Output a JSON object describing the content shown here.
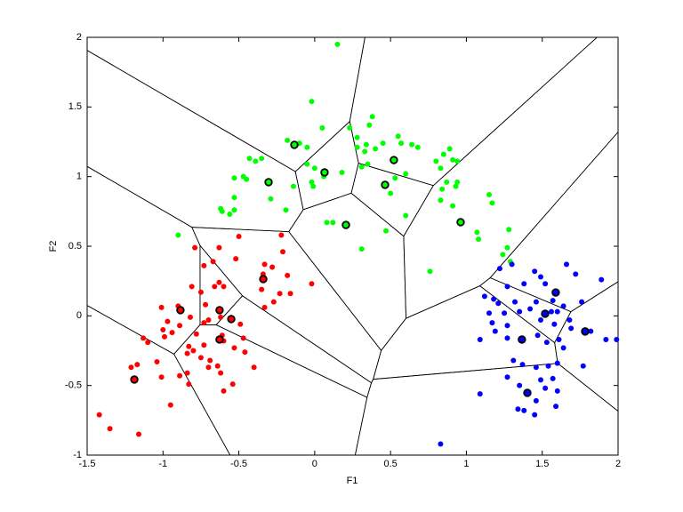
{
  "chart_data": {
    "type": "scatter",
    "xlabel": "F1",
    "ylabel": "F2",
    "xlim": [
      -1.5,
      2
    ],
    "ylim": [
      -1,
      2
    ],
    "xticks": [
      -1.5,
      -1,
      -0.5,
      0,
      0.5,
      1,
      1.5,
      2
    ],
    "yticks": [
      -1,
      -0.5,
      0,
      0.5,
      1,
      1.5,
      2
    ],
    "series": [
      {
        "color": "#00ff00",
        "x": [
          0.15,
          -0.02,
          0.38,
          0.36,
          0.05,
          0.23,
          -0.18,
          0.28,
          0.55,
          0.34,
          -0.1,
          -0.05,
          0.28,
          0.45,
          0.57,
          0.64,
          0.33,
          0.4,
          0.68,
          0.89,
          0.85,
          -0.43,
          -0.39,
          -0.35,
          -0.05,
          0.0,
          0.31,
          0.35,
          0.8,
          0.91,
          0.94,
          0.83,
          -0.47,
          -0.53,
          0.06,
          0.18,
          0.6,
          0.53,
          -0.02,
          0.87,
          0.94,
          -0.45,
          -0.01,
          0.84,
          0.93,
          1.15,
          -0.53,
          -0.14,
          -0.29,
          0.5,
          0.83,
          1.17,
          -0.53,
          -0.62,
          -0.61,
          -0.19,
          -0.56,
          0.08,
          0.12,
          0.91,
          0.6,
          0.47,
          1.07,
          1.28,
          1.08,
          1.27,
          -0.9,
          1.24,
          0.31,
          1.29,
          0.76
        ],
        "y": [
          1.95,
          1.54,
          1.43,
          1.37,
          1.35,
          1.35,
          1.26,
          1.28,
          1.29,
          1.23,
          1.24,
          1.21,
          1.21,
          1.24,
          1.24,
          1.23,
          1.18,
          1.2,
          1.21,
          1.2,
          1.16,
          1.13,
          1.11,
          1.13,
          1.09,
          1.06,
          1.07,
          1.09,
          1.11,
          1.12,
          1.11,
          1.06,
          1.0,
          0.99,
          1.0,
          1.03,
          1.02,
          0.99,
          0.96,
          0.96,
          0.96,
          0.98,
          0.93,
          0.91,
          0.93,
          0.87,
          0.85,
          0.93,
          0.84,
          0.88,
          0.83,
          0.81,
          0.76,
          0.77,
          0.75,
          0.76,
          0.73,
          0.67,
          0.67,
          0.79,
          0.72,
          0.61,
          0.6,
          0.62,
          0.55,
          0.49,
          0.58,
          0.44,
          0.48,
          0.39,
          0.32
        ],
        "centers": {
          "x": [
            -0.134,
            0.065,
            0.522,
            -0.304,
            0.464,
            0.206,
            0.962
          ],
          "y": [
            1.228,
            1.03,
            1.119,
            0.96,
            0.941,
            0.653,
            0.673
          ]
        }
      },
      {
        "color": "#ff0000",
        "x": [
          -0.79,
          -0.63,
          -0.5,
          -0.22,
          -0.67,
          -0.52,
          -0.73,
          -0.21,
          -0.33,
          -0.28,
          -0.34,
          -0.18,
          -0.63,
          -0.6,
          -0.66,
          -0.75,
          -0.81,
          -0.35,
          -0.23,
          -0.02,
          -0.16,
          -0.27,
          -0.33,
          -0.9,
          -1.01,
          -0.72,
          -0.62,
          -0.7,
          -0.73,
          -0.82,
          -0.97,
          -1.0,
          -0.89,
          -0.94,
          -0.49,
          -0.61,
          -0.78,
          -0.83,
          -0.73,
          -0.47,
          -0.6,
          -0.53,
          -1.13,
          -1.1,
          -0.99,
          -0.8,
          -0.84,
          -0.46,
          -0.75,
          -0.69,
          -1.04,
          -0.64,
          -0.7,
          -1.17,
          -0.4,
          -1.21,
          -0.84,
          -0.89,
          -0.62,
          -1.01,
          -0.83,
          -0.54,
          -0.6,
          -0.95,
          -1.42,
          -1.35,
          -1.16
        ],
        "y": [
          0.49,
          0.49,
          0.57,
          0.58,
          0.39,
          0.41,
          0.36,
          0.46,
          0.37,
          0.35,
          0.3,
          0.29,
          0.24,
          0.21,
          0.21,
          0.17,
          0.21,
          0.19,
          0.16,
          0.23,
          0.16,
          0.1,
          0.06,
          0.07,
          0.06,
          0.08,
          -0.01,
          -0.03,
          -0.05,
          -0.01,
          -0.04,
          -0.1,
          -0.07,
          -0.12,
          -0.06,
          -0.14,
          -0.13,
          -0.22,
          -0.21,
          -0.16,
          -0.18,
          -0.23,
          -0.16,
          -0.19,
          -0.15,
          -0.25,
          -0.27,
          -0.26,
          -0.3,
          -0.32,
          -0.33,
          -0.36,
          -0.37,
          -0.35,
          -0.37,
          -0.37,
          -0.41,
          -0.43,
          -0.41,
          -0.44,
          -0.49,
          -0.49,
          -0.54,
          -0.64,
          -0.71,
          -0.81,
          -0.85
        ],
        "centers": {
          "x": [
            -0.339,
            -0.885,
            -0.627,
            -0.55,
            -0.627,
            -1.189
          ],
          "y": [
            0.264,
            0.041,
            0.041,
            -0.023,
            -0.17,
            -0.457
          ]
        }
      },
      {
        "color": "#0000ff",
        "x": [
          1.22,
          1.3,
          1.45,
          1.66,
          1.72,
          1.89,
          1.49,
          1.27,
          1.38,
          1.52,
          1.12,
          1.18,
          1.15,
          1.21,
          1.32,
          1.35,
          1.57,
          1.64,
          1.76,
          1.42,
          1.46,
          1.6,
          1.68,
          1.56,
          1.25,
          1.17,
          1.27,
          1.19,
          1.49,
          1.58,
          1.69,
          1.82,
          1.61,
          1.64,
          1.47,
          1.53,
          1.99,
          1.92,
          1.09,
          1.27,
          1.31,
          1.54,
          1.6,
          1.77,
          1.37,
          1.46,
          1.27,
          1.57,
          1.49,
          1.35,
          1.52,
          1.6,
          1.09,
          1.46,
          1.34,
          1.45,
          1.59,
          1.38,
          0.83
        ],
        "y": [
          0.34,
          0.37,
          0.32,
          0.37,
          0.3,
          0.26,
          0.28,
          0.21,
          0.23,
          0.23,
          0.14,
          0.12,
          0.02,
          0.09,
          0.1,
          0.03,
          0.11,
          0.07,
          0.1,
          0.05,
          0.1,
          0.03,
          -0.03,
          0.03,
          0.02,
          -0.05,
          -0.07,
          -0.11,
          -0.03,
          -0.06,
          -0.09,
          -0.11,
          -0.17,
          -0.23,
          -0.14,
          -0.19,
          -0.17,
          -0.17,
          -0.17,
          -0.16,
          -0.32,
          -0.36,
          -0.34,
          -0.36,
          -0.35,
          -0.37,
          -0.44,
          -0.45,
          -0.46,
          -0.5,
          -0.52,
          -0.54,
          -0.56,
          -0.61,
          -0.67,
          -0.71,
          -0.65,
          -0.68,
          -0.92
        ],
        "centers": {
          "x": [
            1.589,
            1.519,
            1.783,
            1.366,
            1.402
          ],
          "y": [
            0.168,
            0.015,
            -0.112,
            -0.17,
            -0.553
          ]
        }
      }
    ]
  }
}
